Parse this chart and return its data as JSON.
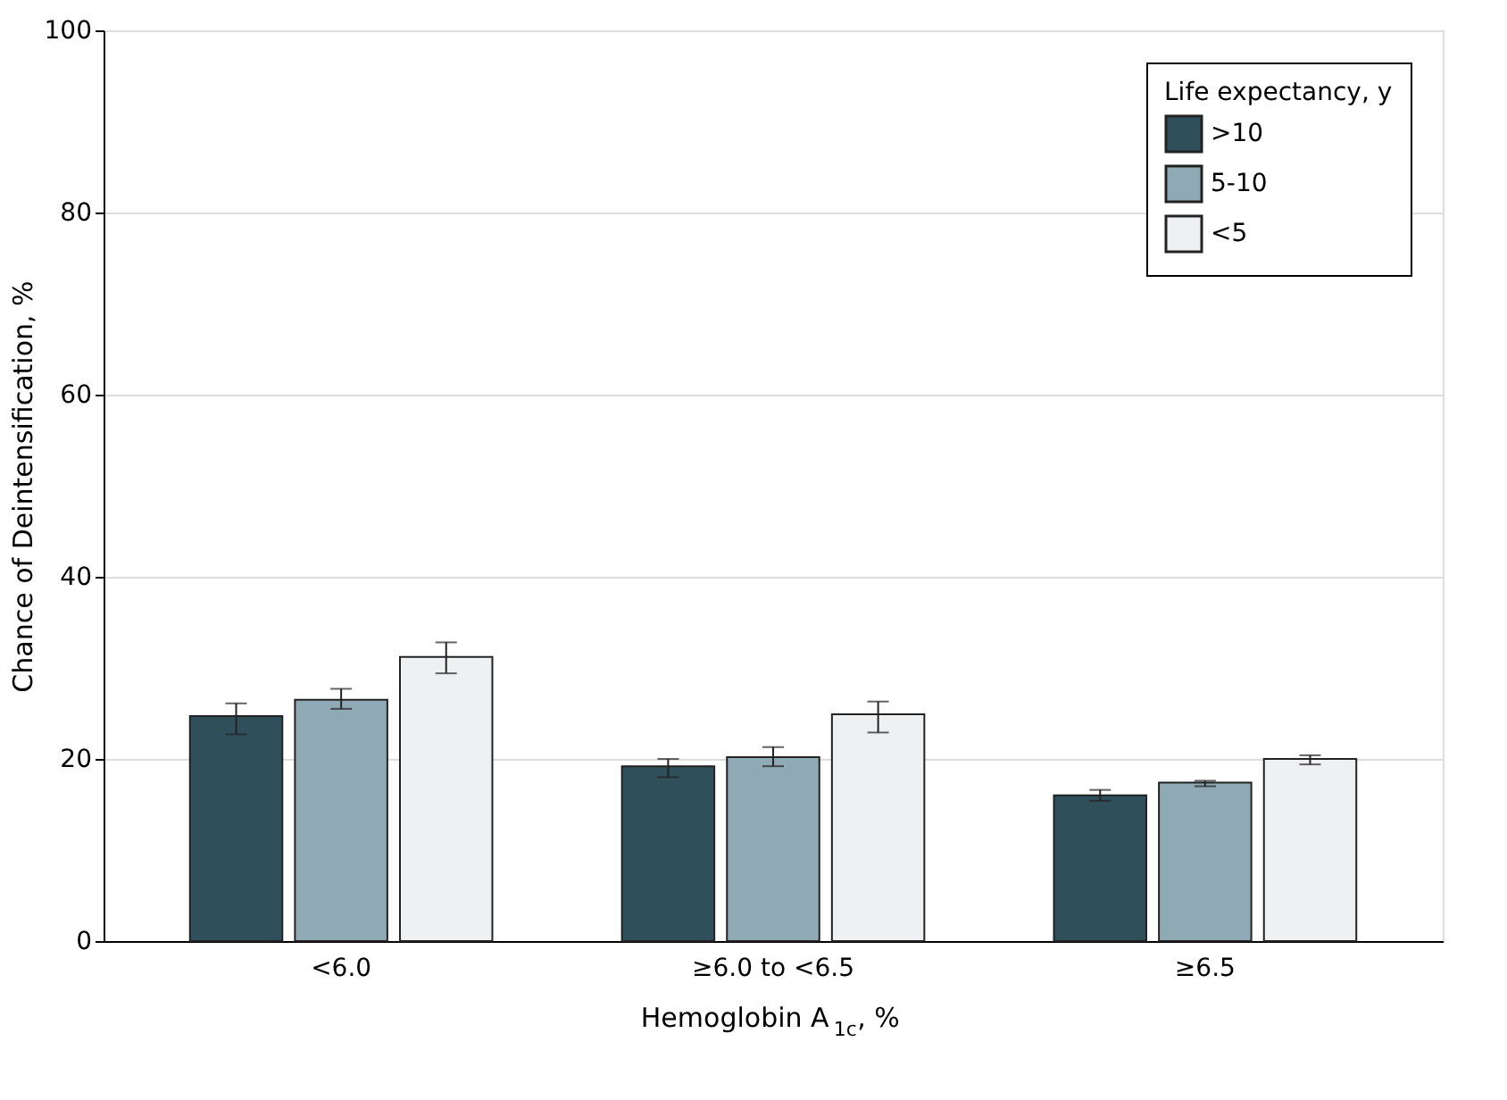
{
  "chart_data": {
    "type": "bar",
    "xlabel": "Hemoglobin A$_{1c}$, %",
    "ylabel": "Chance of Deintensification, %",
    "legend_title": "Life expectancy, y",
    "categories": [
      "<6.0",
      "≥6.0 to <6.5",
      "≥6.5"
    ],
    "series": [
      {
        "name": ">10",
        "color": "#2f4f5a",
        "values": [
          24.7,
          19.2,
          16.0
        ],
        "errors": [
          [
            22.7,
            26.1
          ],
          [
            18.0,
            20.0
          ],
          [
            15.4,
            16.6
          ]
        ]
      },
      {
        "name": "5-10",
        "color": "#8fa9b5",
        "values": [
          26.5,
          20.2,
          17.4
        ],
        "errors": [
          [
            25.5,
            27.7
          ],
          [
            19.2,
            21.3
          ],
          [
            17.0,
            17.6
          ]
        ]
      },
      {
        "name": "<5",
        "color": "#eef0f1",
        "values": [
          31.2,
          24.9,
          20.0
        ],
        "errors": [
          [
            29.4,
            32.8
          ],
          [
            22.9,
            26.3
          ],
          [
            19.4,
            20.4
          ]
        ]
      }
    ],
    "ylim": [
      0,
      100
    ],
    "yticks": [
      0,
      20,
      40,
      60,
      80,
      100
    ],
    "grid": "y",
    "legend": "top right"
  }
}
